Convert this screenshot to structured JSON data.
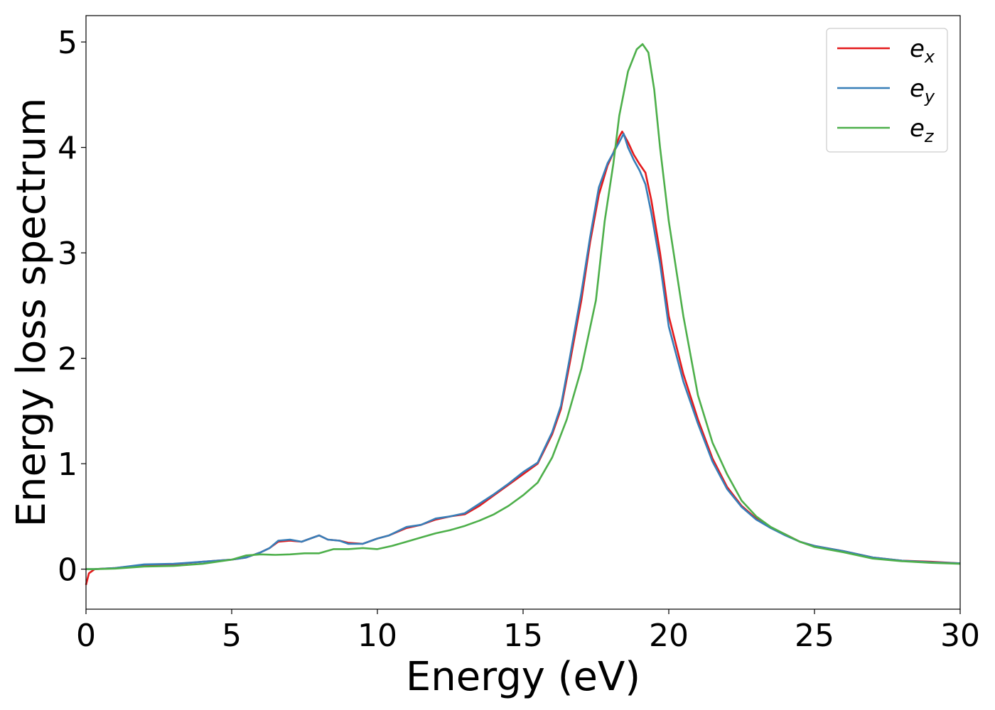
{
  "chart_data": {
    "type": "line",
    "title": "",
    "xlabel": "Energy (eV)",
    "ylabel": "Energy loss spectrum",
    "xlim": [
      0,
      30
    ],
    "ylim": [
      -0.38,
      5.25
    ],
    "xticks": [
      0,
      5,
      10,
      15,
      20,
      25,
      30
    ],
    "yticks": [
      0,
      1,
      2,
      3,
      4,
      5
    ],
    "grid": false,
    "legend_position": "top-right",
    "series": [
      {
        "name_base": "e",
        "name_sub": "x",
        "color": "#e41a1c",
        "points": [
          [
            0,
            -0.15
          ],
          [
            0.1,
            -0.04
          ],
          [
            0.3,
            0.0
          ],
          [
            1,
            0.01
          ],
          [
            2,
            0.04
          ],
          [
            3,
            0.045
          ],
          [
            4,
            0.07
          ],
          [
            5,
            0.09
          ],
          [
            5.5,
            0.11
          ],
          [
            6,
            0.16
          ],
          [
            6.3,
            0.2
          ],
          [
            6.6,
            0.26
          ],
          [
            7,
            0.27
          ],
          [
            7.4,
            0.26
          ],
          [
            7.8,
            0.3
          ],
          [
            8,
            0.32
          ],
          [
            8.3,
            0.28
          ],
          [
            8.7,
            0.27
          ],
          [
            9,
            0.25
          ],
          [
            9.5,
            0.24
          ],
          [
            10,
            0.29
          ],
          [
            10.4,
            0.32
          ],
          [
            11,
            0.39
          ],
          [
            11.5,
            0.42
          ],
          [
            12,
            0.47
          ],
          [
            12.5,
            0.5
          ],
          [
            13,
            0.52
          ],
          [
            13.5,
            0.6
          ],
          [
            14,
            0.7
          ],
          [
            14.5,
            0.8
          ],
          [
            15,
            0.9
          ],
          [
            15.5,
            1.0
          ],
          [
            16,
            1.28
          ],
          [
            16.3,
            1.52
          ],
          [
            16.6,
            1.95
          ],
          [
            17,
            2.55
          ],
          [
            17.3,
            3.1
          ],
          [
            17.6,
            3.55
          ],
          [
            17.9,
            3.83
          ],
          [
            18.1,
            3.95
          ],
          [
            18.3,
            4.1
          ],
          [
            18.4,
            4.15
          ],
          [
            18.6,
            4.05
          ],
          [
            18.8,
            3.93
          ],
          [
            19.0,
            3.84
          ],
          [
            19.2,
            3.76
          ],
          [
            19.4,
            3.5
          ],
          [
            19.7,
            3.0
          ],
          [
            20,
            2.4
          ],
          [
            20.5,
            1.85
          ],
          [
            21,
            1.42
          ],
          [
            21.5,
            1.05
          ],
          [
            22,
            0.78
          ],
          [
            22.5,
            0.6
          ],
          [
            23,
            0.48
          ],
          [
            23.5,
            0.39
          ],
          [
            24,
            0.33
          ],
          [
            24.5,
            0.26
          ],
          [
            25,
            0.22
          ],
          [
            26,
            0.17
          ],
          [
            27,
            0.11
          ],
          [
            28,
            0.08
          ],
          [
            29,
            0.07
          ],
          [
            30,
            0.055
          ]
        ]
      },
      {
        "name_base": "e",
        "name_sub": "y",
        "color": "#377eb8",
        "points": [
          [
            0,
            0.0
          ],
          [
            0.3,
            0.0
          ],
          [
            1,
            0.01
          ],
          [
            2,
            0.045
          ],
          [
            3,
            0.05
          ],
          [
            4,
            0.07
          ],
          [
            5,
            0.09
          ],
          [
            5.5,
            0.11
          ],
          [
            6,
            0.16
          ],
          [
            6.3,
            0.2
          ],
          [
            6.6,
            0.27
          ],
          [
            7,
            0.28
          ],
          [
            7.4,
            0.26
          ],
          [
            7.8,
            0.3
          ],
          [
            8,
            0.32
          ],
          [
            8.3,
            0.28
          ],
          [
            8.7,
            0.27
          ],
          [
            9,
            0.24
          ],
          [
            9.5,
            0.24
          ],
          [
            10,
            0.29
          ],
          [
            10.4,
            0.32
          ],
          [
            11,
            0.4
          ],
          [
            11.5,
            0.42
          ],
          [
            12,
            0.48
          ],
          [
            12.5,
            0.5
          ],
          [
            13,
            0.53
          ],
          [
            13.5,
            0.62
          ],
          [
            14,
            0.71
          ],
          [
            14.5,
            0.81
          ],
          [
            15,
            0.92
          ],
          [
            15.5,
            1.01
          ],
          [
            16,
            1.3
          ],
          [
            16.3,
            1.55
          ],
          [
            16.6,
            2.0
          ],
          [
            17,
            2.62
          ],
          [
            17.3,
            3.15
          ],
          [
            17.6,
            3.62
          ],
          [
            17.9,
            3.85
          ],
          [
            18.1,
            3.95
          ],
          [
            18.3,
            4.05
          ],
          [
            18.45,
            4.13
          ],
          [
            18.6,
            4.0
          ],
          [
            18.8,
            3.88
          ],
          [
            19.0,
            3.78
          ],
          [
            19.2,
            3.65
          ],
          [
            19.4,
            3.38
          ],
          [
            19.7,
            2.9
          ],
          [
            20,
            2.3
          ],
          [
            20.5,
            1.78
          ],
          [
            21,
            1.38
          ],
          [
            21.5,
            1.02
          ],
          [
            22,
            0.76
          ],
          [
            22.5,
            0.59
          ],
          [
            23,
            0.47
          ],
          [
            23.5,
            0.39
          ],
          [
            24,
            0.32
          ],
          [
            24.5,
            0.26
          ],
          [
            25,
            0.22
          ],
          [
            26,
            0.17
          ],
          [
            27,
            0.11
          ],
          [
            28,
            0.08
          ],
          [
            29,
            0.065
          ],
          [
            30,
            0.055
          ]
        ]
      },
      {
        "name_base": "e",
        "name_sub": "z",
        "color": "#4daf4a",
        "points": [
          [
            0,
            0.0
          ],
          [
            0.3,
            0.0
          ],
          [
            1,
            0.005
          ],
          [
            2,
            0.025
          ],
          [
            3,
            0.03
          ],
          [
            4,
            0.05
          ],
          [
            5,
            0.09
          ],
          [
            5.5,
            0.13
          ],
          [
            6,
            0.14
          ],
          [
            6.5,
            0.135
          ],
          [
            7,
            0.14
          ],
          [
            7.5,
            0.15
          ],
          [
            8,
            0.15
          ],
          [
            8.5,
            0.19
          ],
          [
            9,
            0.19
          ],
          [
            9.5,
            0.2
          ],
          [
            10,
            0.19
          ],
          [
            10.5,
            0.22
          ],
          [
            11,
            0.26
          ],
          [
            11.5,
            0.3
          ],
          [
            12,
            0.34
          ],
          [
            12.5,
            0.37
          ],
          [
            13,
            0.41
          ],
          [
            13.5,
            0.46
          ],
          [
            14,
            0.52
          ],
          [
            14.5,
            0.6
          ],
          [
            15,
            0.7
          ],
          [
            15.5,
            0.82
          ],
          [
            16,
            1.06
          ],
          [
            16.5,
            1.42
          ],
          [
            17,
            1.9
          ],
          [
            17.5,
            2.55
          ],
          [
            17.8,
            3.3
          ],
          [
            18.1,
            3.85
          ],
          [
            18.3,
            4.3
          ],
          [
            18.6,
            4.72
          ],
          [
            18.9,
            4.93
          ],
          [
            19.1,
            4.98
          ],
          [
            19.3,
            4.9
          ],
          [
            19.5,
            4.55
          ],
          [
            19.7,
            4.0
          ],
          [
            20,
            3.3
          ],
          [
            20.5,
            2.4
          ],
          [
            21,
            1.65
          ],
          [
            21.5,
            1.2
          ],
          [
            22,
            0.9
          ],
          [
            22.5,
            0.65
          ],
          [
            23,
            0.5
          ],
          [
            23.5,
            0.4
          ],
          [
            24,
            0.33
          ],
          [
            24.5,
            0.26
          ],
          [
            25,
            0.21
          ],
          [
            26,
            0.16
          ],
          [
            27,
            0.1
          ],
          [
            28,
            0.075
          ],
          [
            29,
            0.06
          ],
          [
            30,
            0.05
          ]
        ]
      }
    ]
  }
}
